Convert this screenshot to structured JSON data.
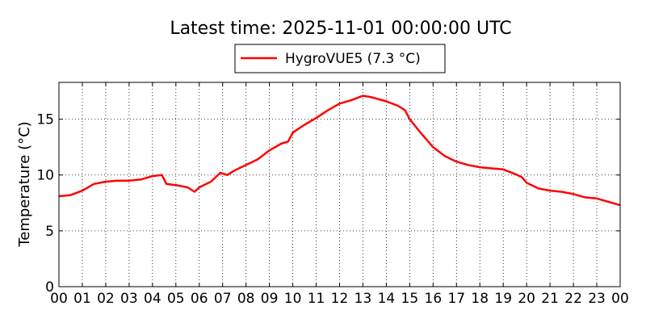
{
  "chart_data": {
    "type": "line",
    "title": "Latest time: 2025-11-01 00:00:00 UTC",
    "xlabel": "",
    "ylabel": "Temperature (°C)",
    "xlim": [
      0,
      24
    ],
    "ylim": [
      0,
      18.3
    ],
    "grid": true,
    "legend_position": "top-center",
    "x_ticks": [
      "00",
      "01",
      "02",
      "03",
      "04",
      "05",
      "06",
      "07",
      "08",
      "09",
      "10",
      "11",
      "12",
      "13",
      "14",
      "15",
      "16",
      "17",
      "18",
      "19",
      "20",
      "21",
      "22",
      "23",
      "00"
    ],
    "y_ticks": [
      0,
      5,
      10,
      15
    ],
    "legend_label": "HygroVUE5 (7.3 °C)",
    "series": [
      {
        "name": "HygroVUE5 (7.3 °C)",
        "color": "#ff0000",
        "x": [
          0.0,
          0.5,
          1.0,
          1.5,
          2.0,
          2.5,
          3.0,
          3.5,
          4.0,
          4.4,
          4.6,
          5.0,
          5.5,
          5.8,
          6.0,
          6.5,
          6.9,
          7.2,
          7.5,
          8.0,
          8.5,
          9.0,
          9.5,
          9.8,
          10.0,
          10.5,
          11.0,
          11.5,
          12.0,
          12.5,
          13.0,
          13.3,
          13.5,
          14.0,
          14.5,
          14.8,
          15.0,
          15.5,
          16.0,
          16.5,
          17.0,
          17.5,
          18.0,
          18.5,
          19.0,
          19.5,
          19.8,
          20.0,
          20.5,
          21.0,
          21.5,
          22.0,
          22.5,
          23.0,
          23.5,
          24.0
        ],
        "values": [
          8.1,
          8.2,
          8.6,
          9.2,
          9.4,
          9.5,
          9.5,
          9.6,
          9.9,
          10.0,
          9.2,
          9.1,
          8.9,
          8.5,
          8.9,
          9.4,
          10.2,
          10.0,
          10.4,
          10.9,
          11.4,
          12.2,
          12.8,
          13.0,
          13.8,
          14.5,
          15.1,
          15.8,
          16.4,
          16.7,
          17.1,
          17.0,
          16.9,
          16.6,
          16.2,
          15.8,
          15.0,
          13.7,
          12.5,
          11.7,
          11.2,
          10.9,
          10.7,
          10.6,
          10.5,
          10.1,
          9.8,
          9.3,
          8.8,
          8.6,
          8.5,
          8.3,
          8.0,
          7.9,
          7.6,
          7.3
        ]
      }
    ]
  }
}
